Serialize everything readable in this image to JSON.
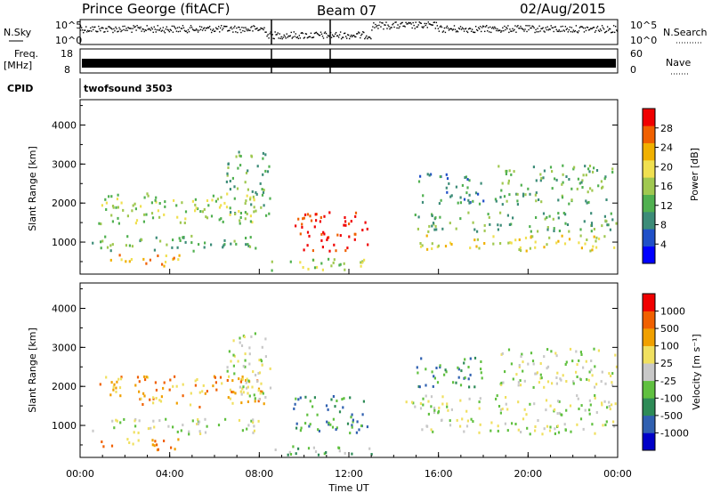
{
  "header": {
    "station": "Prince George (fitACF)",
    "beam": "Beam 07",
    "date": "02/Aug/2015"
  },
  "panels": {
    "nsky_label": "N.Sky",
    "nsky_ticks": [
      "10^5",
      "10^0"
    ],
    "nsearch_label": "N.Search",
    "nsearch_ticks": [
      "10^5",
      "10^0"
    ],
    "freq_label": "Freq.",
    "freq_unit": "[MHz]",
    "freq_ticks": [
      "18",
      "8"
    ],
    "nave_label": "Nave",
    "nave_ticks": [
      "60",
      "0"
    ],
    "cpid_label": "CPID",
    "cpid_name": "twofsound 3503"
  },
  "chart_data": [
    {
      "type": "heatmap",
      "name": "power",
      "ylabel": "Slant Range [km]",
      "yticks": [
        "4000",
        "3000",
        "2000",
        "1000"
      ],
      "ylim": [
        180,
        4650
      ],
      "colorbar_label": "Power [dB]",
      "colorbar_ticks": [
        "28",
        "24",
        "20",
        "16",
        "12",
        "8",
        "4"
      ],
      "colorbar_colors": [
        "#0000ff",
        "#2050c8",
        "#3c8c78",
        "#50b050",
        "#a0c850",
        "#f0e050",
        "#f0b000",
        "#f06000",
        "#f00000"
      ],
      "regions": [
        {
          "t0": 0.8,
          "t1": 8.2,
          "r0": 1500,
          "r1": 2300,
          "level": 4
        },
        {
          "t0": 0.8,
          "t1": 4.5,
          "r0": 400,
          "r1": 700,
          "level": 6
        },
        {
          "t0": 0.5,
          "t1": 8.0,
          "r0": 800,
          "r1": 1200,
          "level": 3
        },
        {
          "t0": 6.5,
          "t1": 8.5,
          "r0": 1700,
          "r1": 3400,
          "level": 3
        },
        {
          "t0": 9.5,
          "t1": 12.8,
          "r0": 800,
          "r1": 1800,
          "level": 8
        },
        {
          "t0": 8.5,
          "t1": 13.5,
          "r0": 300,
          "r1": 600,
          "level": 4
        },
        {
          "t0": 14.5,
          "t1": 24.0,
          "r0": 1300,
          "r1": 1800,
          "level": 3
        },
        {
          "t0": 15.0,
          "t1": 24.0,
          "r0": 800,
          "r1": 1200,
          "level": 5
        },
        {
          "t0": 18.5,
          "t1": 24.0,
          "r0": 2000,
          "r1": 3000,
          "level": 3
        },
        {
          "t0": 15.0,
          "t1": 18.0,
          "r0": 2000,
          "r1": 2800,
          "level": 2
        }
      ]
    },
    {
      "type": "heatmap",
      "name": "velocity",
      "ylabel": "Slant Range [km]",
      "yticks": [
        "4000",
        "3000",
        "2000",
        "1000"
      ],
      "ylim": [
        180,
        4650
      ],
      "xlabel": "Time UT",
      "xticks": [
        "00:00",
        "04:00",
        "08:00",
        "12:00",
        "16:00",
        "20:00",
        "00:00"
      ],
      "xlim": [
        0,
        24
      ],
      "colorbar_label": "Velocity [m s⁻¹]",
      "colorbar_ticks": [
        "1000",
        "500",
        "100",
        "25",
        "-25",
        "-100",
        "-500",
        "-1000"
      ],
      "colorbar_colors": [
        "#0000c8",
        "#3060b0",
        "#2e8b57",
        "#60c040",
        "#c8c8c8",
        "#f0e060",
        "#f0a000",
        "#f06000",
        "#f00000"
      ],
      "regions": [
        {
          "t0": 0.8,
          "t1": 8.2,
          "r0": 1500,
          "r1": 2300,
          "level": 6
        },
        {
          "t0": 0.8,
          "t1": 4.5,
          "r0": 400,
          "r1": 700,
          "level": 6
        },
        {
          "t0": 0.5,
          "t1": 8.0,
          "r0": 800,
          "r1": 1200,
          "level": 4
        },
        {
          "t0": 6.5,
          "t1": 8.5,
          "r0": 1700,
          "r1": 3400,
          "level": 4
        },
        {
          "t0": 9.5,
          "t1": 12.8,
          "r0": 800,
          "r1": 1800,
          "level": 2
        },
        {
          "t0": 8.5,
          "t1": 13.5,
          "r0": 200,
          "r1": 500,
          "level": 3
        },
        {
          "t0": 14.5,
          "t1": 24.0,
          "r0": 1300,
          "r1": 1800,
          "level": 4
        },
        {
          "t0": 15.0,
          "t1": 24.0,
          "r0": 800,
          "r1": 1200,
          "level": 4
        },
        {
          "t0": 18.5,
          "t1": 24.0,
          "r0": 2000,
          "r1": 3000,
          "level": 4
        },
        {
          "t0": 15.0,
          "t1": 18.0,
          "r0": 2000,
          "r1": 2800,
          "level": 2
        }
      ]
    }
  ]
}
